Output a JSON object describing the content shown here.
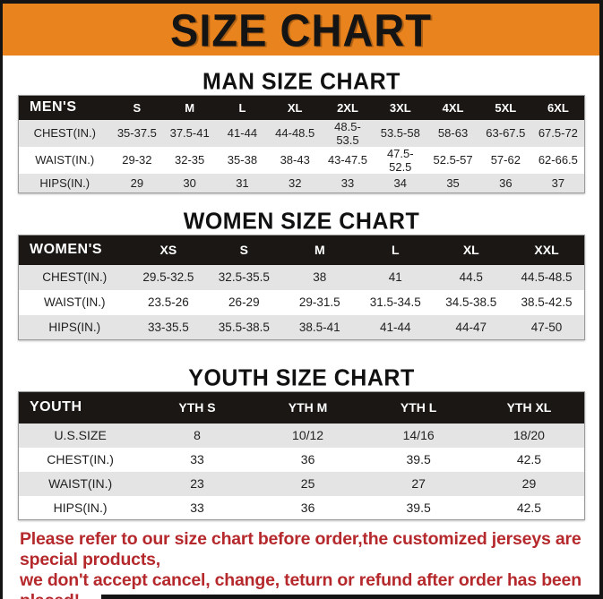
{
  "banner": {
    "title": "SIZE CHART",
    "bg_color": "#E8831E",
    "text_color": "#141414"
  },
  "sections": {
    "man": {
      "title": "MAN SIZE CHART"
    },
    "women": {
      "title": "WOMEN SIZE CHART"
    },
    "youth": {
      "title": "YOUTH SIZE CHART"
    }
  },
  "tables": {
    "men": {
      "header": [
        "MEN'S",
        "S",
        "M",
        "L",
        "XL",
        "2XL",
        "3XL",
        "4XL",
        "5XL",
        "6XL"
      ],
      "rows": [
        [
          "CHEST(IN.)",
          "35-37.5",
          "37.5-41",
          "41-44",
          "44-48.5",
          "48.5-53.5",
          "53.5-58",
          "58-63",
          "63-67.5",
          "67.5-72"
        ],
        [
          "WAIST(IN.)",
          "29-32",
          "32-35",
          "35-38",
          "38-43",
          "43-47.5",
          "47.5-52.5",
          "52.5-57",
          "57-62",
          "62-66.5"
        ],
        [
          "HIPS(IN.)",
          "29",
          "30",
          "31",
          "32",
          "33",
          "34",
          "35",
          "36",
          "37"
        ]
      ]
    },
    "women": {
      "header": [
        "WOMEN'S",
        "XS",
        "S",
        "M",
        "L",
        "XL",
        "XXL"
      ],
      "rows": [
        [
          "CHEST(IN.)",
          "29.5-32.5",
          "32.5-35.5",
          "38",
          "41",
          "44.5",
          "44.5-48.5"
        ],
        [
          "WAIST(IN.)",
          "23.5-26",
          "26-29",
          "29-31.5",
          "31.5-34.5",
          "34.5-38.5",
          "38.5-42.5"
        ],
        [
          "HIPS(IN.)",
          "33-35.5",
          "35.5-38.5",
          "38.5-41",
          "41-44",
          "44-47",
          "47-50"
        ]
      ]
    },
    "youth": {
      "header": [
        "YOUTH",
        "YTH S",
        "YTH M",
        "YTH L",
        "YTH XL"
      ],
      "rows": [
        [
          "U.S.SIZE",
          "8",
          "10/12",
          "14/16",
          "18/20"
        ],
        [
          "CHEST(IN.)",
          "33",
          "36",
          "39.5",
          "42.5"
        ],
        [
          "WAIST(IN.)",
          "23",
          "25",
          "27",
          "29"
        ],
        [
          "HIPS(IN.)",
          "33",
          "36",
          "39.5",
          "42.5"
        ]
      ]
    }
  },
  "footer": {
    "line1": "Please refer to our size chart before order,the customized jerseys are special products,",
    "line2": "we don't accept cancel, change, teturn or refund after order has been placed!",
    "text_color": "#B5282C"
  }
}
